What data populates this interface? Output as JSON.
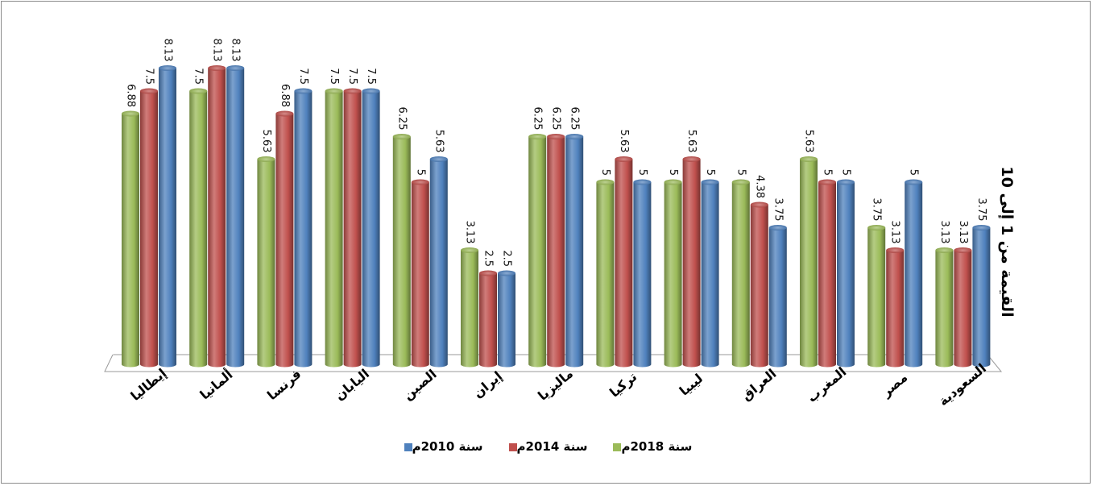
{
  "chart_data": {
    "type": "bar",
    "ylabel": "القيمة من 1 إلى 10",
    "ylim": [
      0,
      10
    ],
    "categories": [
      "إيطاليا",
      "ألمانيا",
      "فرنسا",
      "اليابان",
      "الصين",
      "إيران",
      "ماليزيا",
      "تركيا",
      "ليبيا",
      "العراق",
      "المغرب",
      "مصر",
      "السعودية"
    ],
    "series": [
      {
        "name": "سنة 2018م",
        "color": "#9bbb59",
        "values": [
          6.88,
          7.5,
          5.63,
          7.5,
          6.25,
          3.13,
          6.25,
          5,
          5,
          5,
          5.63,
          3.75,
          3.13
        ]
      },
      {
        "name": "سنة 2014م",
        "color": "#c0504d",
        "values": [
          7.5,
          8.13,
          6.88,
          7.5,
          5,
          2.5,
          6.25,
          5.63,
          5.63,
          4.38,
          5,
          3.13,
          3.13
        ]
      },
      {
        "name": "سنة 2010م",
        "color": "#4f81bd",
        "values": [
          8.13,
          8.13,
          7.5,
          7.5,
          5.63,
          2.5,
          6.25,
          5,
          5,
          3.75,
          5,
          5,
          3.75
        ]
      }
    ],
    "labels": [
      [
        "6.88",
        "7.5",
        "8.13"
      ],
      [
        "7.5",
        "8.13",
        "8.13"
      ],
      [
        "5.63",
        "6.88",
        "7.5"
      ],
      [
        "7.5",
        "7.5",
        "7.5"
      ],
      [
        "6.25",
        "5",
        "5.63"
      ],
      [
        "3.13",
        "2.5",
        "2.5"
      ],
      [
        "6.25",
        "6.25",
        "6.25"
      ],
      [
        "5",
        "5.63",
        "5"
      ],
      [
        "5",
        "5.63",
        "5"
      ],
      [
        "5",
        "4.38",
        "3.75"
      ],
      [
        "5.63",
        "5",
        "5"
      ],
      [
        "3.75",
        "3.13",
        "5"
      ],
      [
        "3.13",
        "3.13",
        "3.75"
      ]
    ],
    "legend_order": [
      2,
      1,
      0
    ],
    "legend_position": "bottom"
  }
}
